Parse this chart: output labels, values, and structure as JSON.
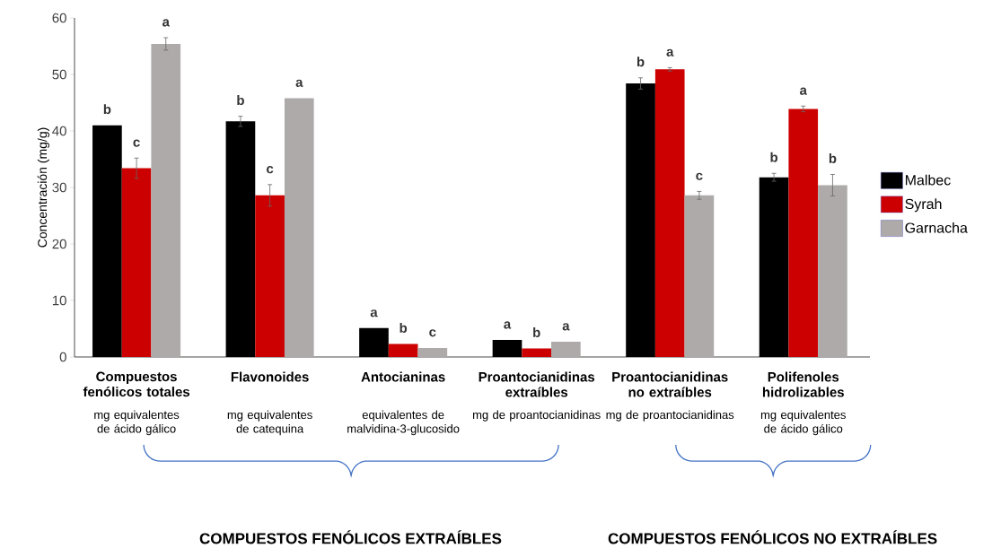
{
  "chart_data": {
    "type": "bar",
    "ylabel": "Concentración (mg/g)",
    "categories": [
      "Compuestos fenólicos totales",
      "Flavonoides",
      "Antocianinas",
      "Proantocianidinas extraíbles",
      "Proantocianidinas no extraíbles",
      "Polifenoles hidrolizables"
    ],
    "series": [
      {
        "name": "Malbec",
        "color": "#000000",
        "values": [
          41.0,
          41.7,
          5.1,
          3.0,
          48.4,
          31.8
        ],
        "errors": [
          null,
          0.9,
          null,
          null,
          1.0,
          0.7
        ]
      },
      {
        "name": "Syrah",
        "color": "#cc0000",
        "values": [
          33.4,
          28.6,
          2.3,
          1.5,
          50.9,
          43.9
        ],
        "errors": [
          1.8,
          1.9,
          null,
          null,
          0.3,
          0.5
        ]
      },
      {
        "name": "Garnacha",
        "color": "#aeaaaa",
        "values": [
          55.4,
          45.8,
          1.6,
          2.7,
          28.6,
          30.4
        ],
        "errors": [
          1.1,
          null,
          null,
          null,
          0.7,
          1.9
        ]
      }
    ],
    "ylim": [
      0,
      60
    ],
    "yticks": [
      0,
      10,
      20,
      30,
      40,
      50,
      60
    ],
    "legend": "right",
    "annotations": [
      "b",
      "c",
      "a",
      "b",
      "c",
      "a",
      "a",
      "b",
      "c",
      "a",
      "b",
      "a",
      "b",
      "a",
      "c",
      "b",
      "a",
      "b",
      "mg equivalentes de ácido gálico",
      "mg equivalentes de catequina",
      "equivalentes de malvidina-3-glucosido",
      "mg de proantocianidinas",
      "mg de proantocianidinas",
      "mg equivalentes de ácido gálico",
      "COMPUESTOS FENÓLICOS EXTRAÍBLES",
      "COMPUESTOS FENÓLICOS NO EXTRAÍBLES"
    ]
  }
}
